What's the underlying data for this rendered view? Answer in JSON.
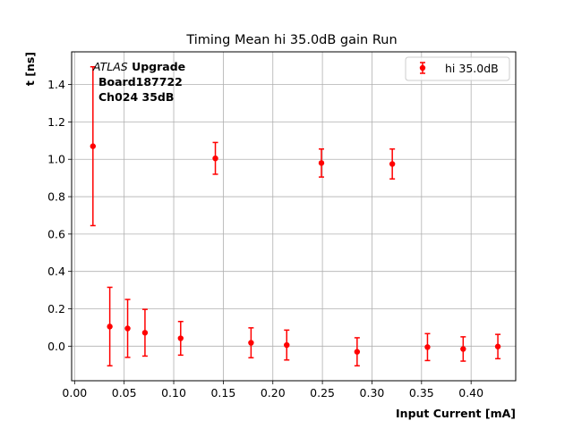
{
  "chart_data": {
    "type": "scatter",
    "title": "Timing Mean hi 35.0dB gain Run",
    "xlabel": "Input Current [mA]",
    "ylabel": "t [ns]",
    "xlim": [
      -0.003,
      0.445
    ],
    "ylim": [
      -0.185,
      1.575
    ],
    "xticks": [
      "0.00",
      "0.05",
      "0.10",
      "0.15",
      "0.20",
      "0.25",
      "0.30",
      "0.35",
      "0.40"
    ],
    "xtick_values": [
      0.0,
      0.05,
      0.1,
      0.15,
      0.2,
      0.25,
      0.3,
      0.35,
      0.4
    ],
    "yticks": [
      "0.0",
      "0.2",
      "0.4",
      "0.6",
      "0.8",
      "1.0",
      "1.2",
      "1.4"
    ],
    "ytick_values": [
      0.0,
      0.2,
      0.4,
      0.6,
      0.8,
      1.0,
      1.2,
      1.4
    ],
    "grid": true,
    "legend_position": "top-right",
    "annotation": {
      "line1_italic": "ATLAS",
      "line1_bold": " Upgrade",
      "line2": "Board187722",
      "line3": "Ch024 35dB"
    },
    "series": [
      {
        "name": "hi 35.0dB",
        "color": "#ff0000",
        "points": [
          {
            "x": 0.0185,
            "y": 1.07,
            "yerr": 0.425
          },
          {
            "x": 0.0355,
            "y": 0.105,
            "yerr": 0.21
          },
          {
            "x": 0.0535,
            "y": 0.095,
            "yerr": 0.155
          },
          {
            "x": 0.071,
            "y": 0.072,
            "yerr": 0.125
          },
          {
            "x": 0.107,
            "y": 0.042,
            "yerr": 0.09
          },
          {
            "x": 0.142,
            "y": 1.005,
            "yerr": 0.085
          },
          {
            "x": 0.178,
            "y": 0.018,
            "yerr": 0.08
          },
          {
            "x": 0.214,
            "y": 0.006,
            "yerr": 0.08
          },
          {
            "x": 0.249,
            "y": 0.98,
            "yerr": 0.075
          },
          {
            "x": 0.285,
            "y": -0.03,
            "yerr": 0.075
          },
          {
            "x": 0.3205,
            "y": 0.975,
            "yerr": 0.08
          },
          {
            "x": 0.356,
            "y": -0.005,
            "yerr": 0.072
          },
          {
            "x": 0.392,
            "y": -0.015,
            "yerr": 0.065
          },
          {
            "x": 0.427,
            "y": -0.002,
            "yerr": 0.065
          }
        ]
      }
    ]
  }
}
